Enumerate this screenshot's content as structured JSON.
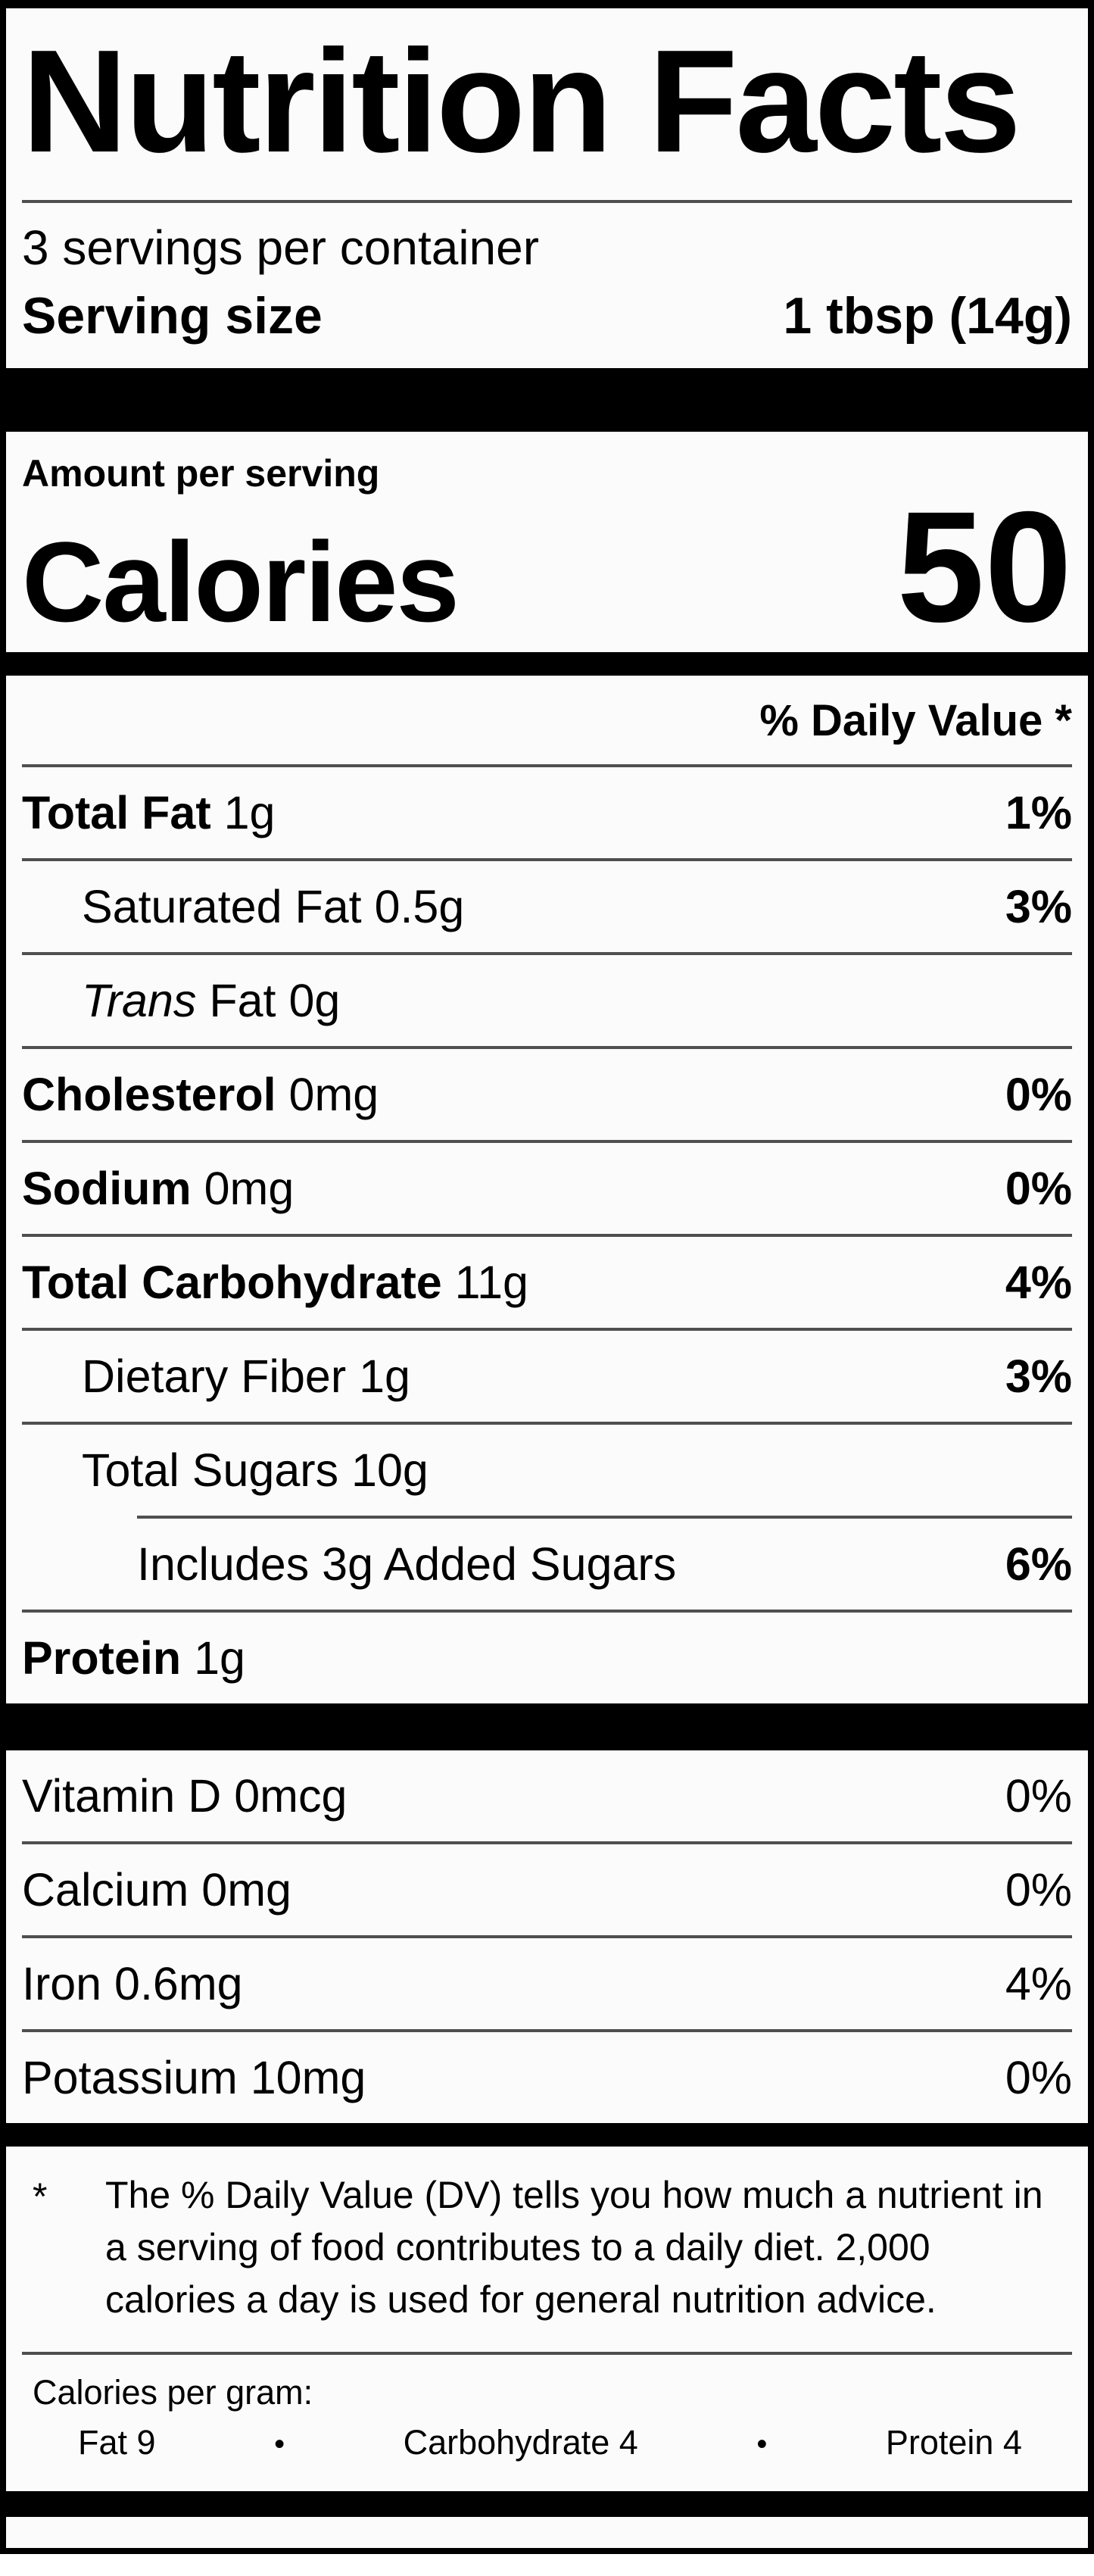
{
  "label": {
    "title": "Nutrition Facts",
    "servings_per_container": "3 servings per container",
    "serving_size_label": "Serving size",
    "serving_size_value": "1 tbsp (14g)",
    "amount_per_serving": "Amount per serving",
    "calories_label": "Calories",
    "calories_value": "50",
    "daily_value_header": "% Daily Value *",
    "nutrients": [
      {
        "name": "Total Fat",
        "amount": "1g",
        "dv": "1%"
      },
      {
        "name": "Saturated Fat",
        "amount": "0.5g",
        "dv": "3%"
      },
      {
        "name": "Trans",
        "amount": "Fat 0g",
        "dv": ""
      },
      {
        "name": "Cholesterol",
        "amount": "0mg",
        "dv": "0%"
      },
      {
        "name": "Sodium",
        "amount": "0mg",
        "dv": "0%"
      },
      {
        "name": "Total Carbohydrate",
        "amount": "11g",
        "dv": "4%"
      },
      {
        "name": "Dietary Fiber",
        "amount": "1g",
        "dv": "3%"
      },
      {
        "name": "Total Sugars",
        "amount": "10g",
        "dv": ""
      },
      {
        "name": "Includes 3g Added Sugars",
        "amount": "",
        "dv": "6%"
      },
      {
        "name": "Protein",
        "amount": "1g",
        "dv": ""
      }
    ],
    "vitamins": [
      {
        "name": "Vitamin D 0mcg",
        "dv": "0%"
      },
      {
        "name": "Calcium 0mg",
        "dv": "0%"
      },
      {
        "name": "Iron 0.6mg",
        "dv": "4%"
      },
      {
        "name": "Potassium 10mg",
        "dv": "0%"
      }
    ],
    "footnote_marker": "*",
    "footnote_text": "The % Daily Value (DV) tells you how much a nutrient in a serving of food contributes to a daily diet. 2,000 calories a day is used for general nutrition advice.",
    "calories_per_gram": {
      "heading": "Calories per gram:",
      "fat": "Fat 9",
      "carbohydrate": "Carbohydrate 4",
      "protein": "Protein 4",
      "bullet": "•"
    },
    "colors": {
      "border": "#000000",
      "background": "#fbfbfb",
      "hairline": "#4f4f4f",
      "text": "#000000"
    }
  }
}
